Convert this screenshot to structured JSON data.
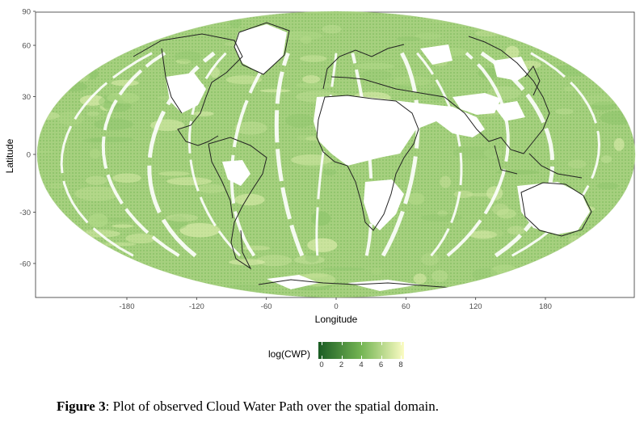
{
  "chart_data": {
    "type": "heatmap",
    "projection": "Mollweide",
    "xlabel": "Longitude",
    "ylabel": "Latitude",
    "x_ticks": [
      "-180",
      "-120",
      "-60",
      "0",
      "60",
      "120",
      "180"
    ],
    "y_ticks": [
      "90",
      "60",
      "30",
      "0",
      "-30",
      "-60"
    ],
    "legend_title": "log(CWP)",
    "legend_ticks": [
      "0",
      "2",
      "4",
      "6",
      "8"
    ],
    "color_low": "#1a5c23",
    "color_mid": "#74b553",
    "color_high": "#fbfcc4",
    "map_background_color": "#a8d27e",
    "missing_color": "#ffffff",
    "coastline_color": "#000000",
    "grid": false
  },
  "caption": {
    "label": "Figure 3",
    "text": ":   Plot of observed Cloud Water Path over the spatial domain."
  }
}
